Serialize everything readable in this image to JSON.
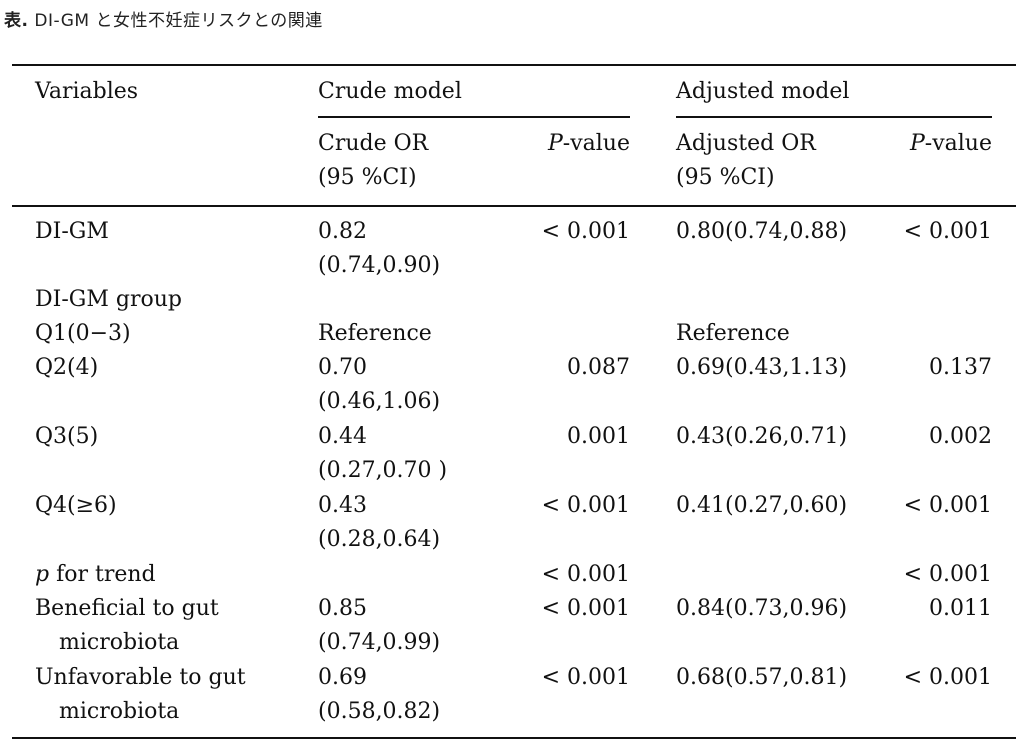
{
  "caption": {
    "label": "表",
    "separator": ".",
    "text": "DI-GM と女性不妊症リスクとの関連"
  },
  "header": {
    "variables": "Variables",
    "crude_model": "Crude model",
    "adjusted_model": "Adjusted model",
    "crude_or_line1": "Crude OR",
    "crude_or_line2": "(95 %CI)",
    "p_italic": "P",
    "p_rest": "-value",
    "adjusted_or_line1": "Adjusted OR",
    "adjusted_or_line2": "(95 %CI)"
  },
  "rows": [
    {
      "label1": "DI-GM",
      "label2": "",
      "crude1": "0.82",
      "crude2": "(0.74,0.90)",
      "crude_p": "< 0.001",
      "adj": "0.80(0.74,0.88)",
      "adj_p": "< 0.001"
    },
    {
      "label1": "DI-GM group",
      "label2": "",
      "crude1": "",
      "crude2": "",
      "crude_p": "",
      "adj": "",
      "adj_p": ""
    },
    {
      "label1": "Q1(0−3)",
      "label2": "",
      "crude1": "Reference",
      "crude2": "",
      "crude_p": "",
      "adj": "Reference",
      "adj_p": ""
    },
    {
      "label1": "Q2(4)",
      "label2": "",
      "crude1": "0.70",
      "crude2": "(0.46,1.06)",
      "crude_p": "0.087",
      "adj": "0.69(0.43,1.13)",
      "adj_p": "0.137"
    },
    {
      "label1": "Q3(5)",
      "label2": "",
      "crude1": "0.44",
      "crude2": "(0.27,0.70 )",
      "crude_p": "0.001",
      "adj": "0.43(0.26,0.71)",
      "adj_p": "0.002"
    },
    {
      "label1": "Q4(≥6)",
      "label2": "",
      "crude1": "0.43",
      "crude2": "(0.28,0.64)",
      "crude_p": "< 0.001",
      "adj": "0.41(0.27,0.60)",
      "adj_p": "< 0.001"
    },
    {
      "label1_italic": "p",
      "label1_rest": " for trend",
      "crude_p": "< 0.001",
      "adj_p": "< 0.001"
    },
    {
      "label1": "Beneficial to gut",
      "label2": "microbiota",
      "crude1": "0.85",
      "crude2": "(0.74,0.99)",
      "crude_p": "< 0.001",
      "adj": "0.84(0.73,0.96)",
      "adj_p": "0.011"
    },
    {
      "label1": "Unfavorable to gut",
      "label2": "microbiota",
      "crude1": "0.69",
      "crude2": "(0.58,0.82)",
      "crude_p": "< 0.001",
      "adj": "0.68(0.57,0.81)",
      "adj_p": "< 0.001"
    }
  ]
}
